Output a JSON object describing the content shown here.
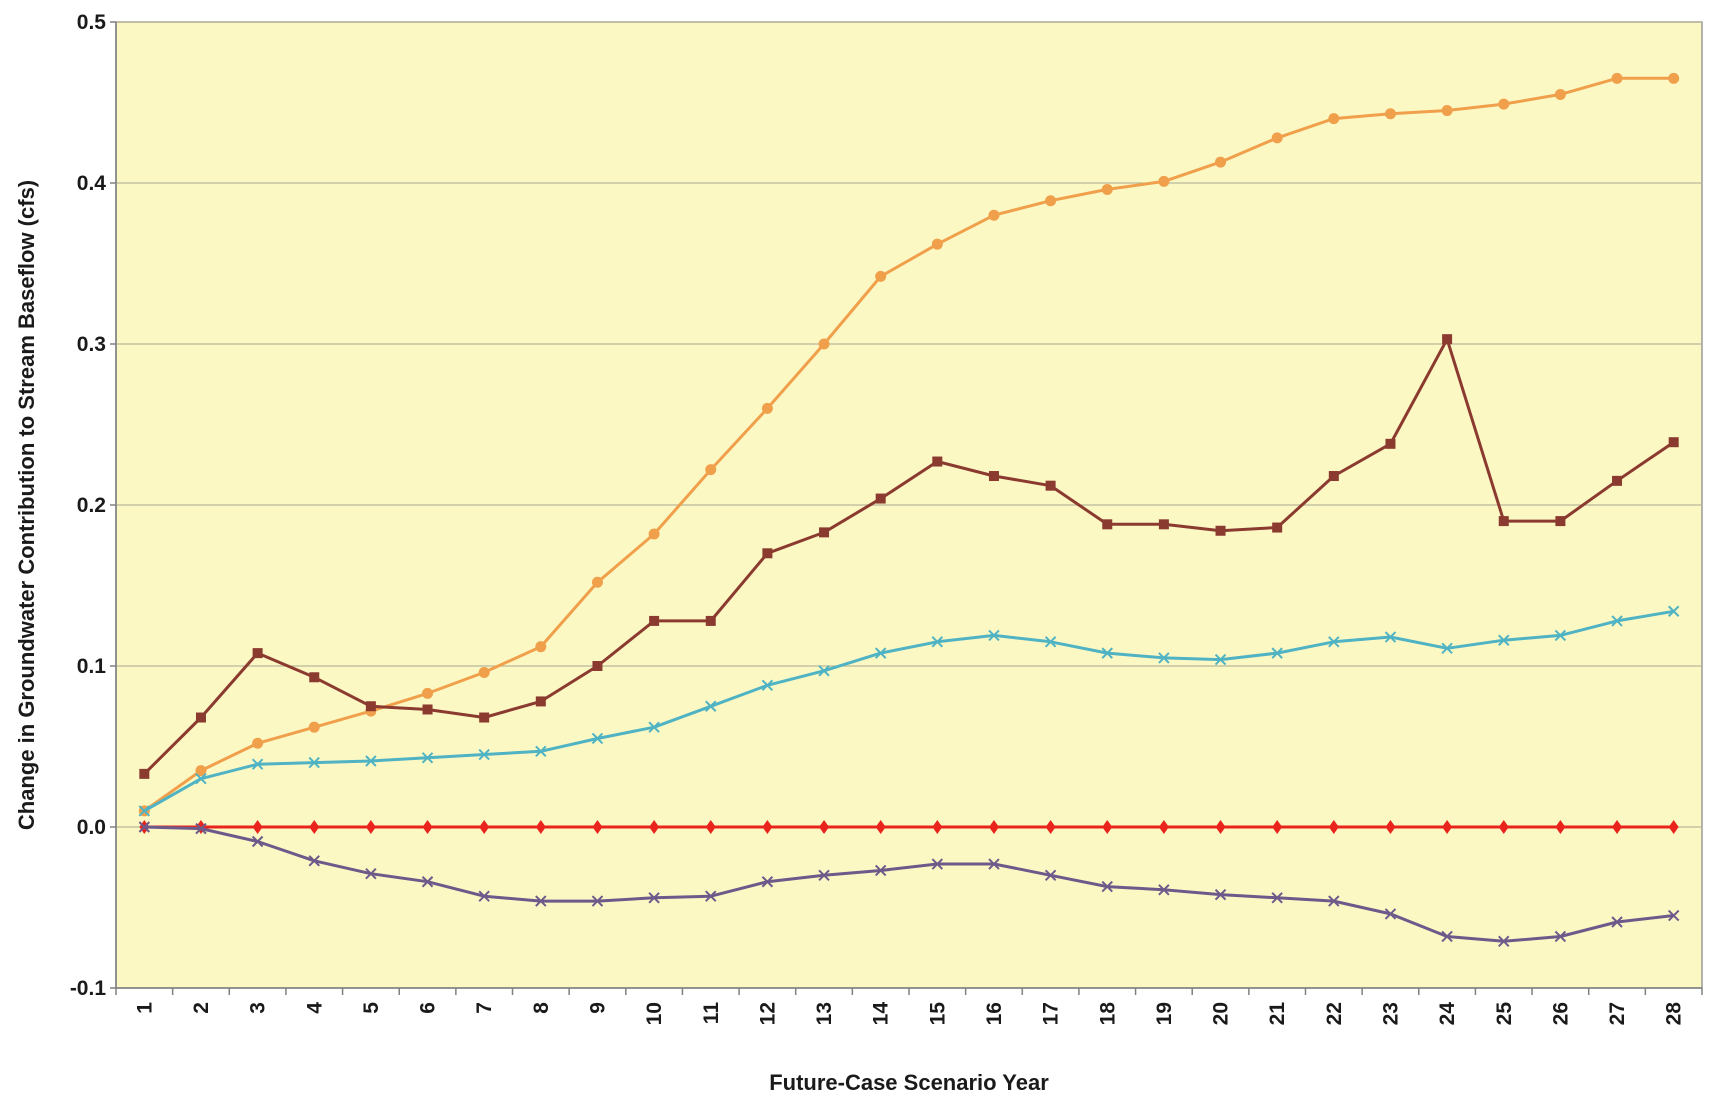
{
  "chart_data": {
    "type": "line",
    "title": "",
    "xlabel": "Future-Case Scenario Year",
    "ylabel": "Change in Groundwater Contribution to Stream Baseflow (cfs)",
    "x": [
      1,
      2,
      3,
      4,
      5,
      6,
      7,
      8,
      9,
      10,
      11,
      12,
      13,
      14,
      15,
      16,
      17,
      18,
      19,
      20,
      21,
      22,
      23,
      24,
      25,
      26,
      27,
      28
    ],
    "ylim": [
      -0.1,
      0.5
    ],
    "yticks": [
      -0.1,
      0.0,
      0.1,
      0.2,
      0.3,
      0.4,
      0.5
    ],
    "ytick_labels": [
      "-0.1",
      "0.0",
      "0.1",
      "0.2",
      "0.3",
      "0.4",
      "0.5"
    ],
    "grid": "horizontal",
    "plot_background": "#fcf8c4",
    "series": [
      {
        "color": "#f0a04b",
        "marker": "circle",
        "values": [
          0.01,
          0.035,
          0.052,
          0.062,
          0.072,
          0.083,
          0.096,
          0.112,
          0.152,
          0.182,
          0.222,
          0.26,
          0.3,
          0.342,
          0.362,
          0.38,
          0.389,
          0.396,
          0.401,
          0.413,
          0.428,
          0.44,
          0.443,
          0.445,
          0.449,
          0.455,
          0.465,
          0.465
        ]
      },
      {
        "color": "#8b3a2f",
        "marker": "square",
        "values": [
          0.033,
          0.068,
          0.108,
          0.093,
          0.075,
          0.073,
          0.068,
          0.078,
          0.1,
          0.128,
          0.128,
          0.17,
          0.183,
          0.204,
          0.227,
          0.218,
          0.212,
          0.188,
          0.188,
          0.184,
          0.186,
          0.218,
          0.238,
          0.303,
          0.19,
          0.19,
          0.215,
          0.239
        ]
      },
      {
        "color": "#4fb3c4",
        "marker": "x",
        "values": [
          0.01,
          0.03,
          0.039,
          0.04,
          0.041,
          0.043,
          0.045,
          0.047,
          0.055,
          0.062,
          0.075,
          0.088,
          0.097,
          0.108,
          0.115,
          0.119,
          0.115,
          0.108,
          0.105,
          0.104,
          0.108,
          0.115,
          0.118,
          0.111,
          0.116,
          0.119,
          0.128,
          0.134
        ]
      },
      {
        "color": "#e8241c",
        "marker": "diamond",
        "values": [
          0,
          0,
          0,
          0,
          0,
          0,
          0,
          0,
          0,
          0,
          0,
          0,
          0,
          0,
          0,
          0,
          0,
          0,
          0,
          0,
          0,
          0,
          0,
          0,
          0,
          0,
          0,
          0
        ]
      },
      {
        "color": "#6e5a8a",
        "marker": "x",
        "values": [
          0,
          -0.001,
          -0.009,
          -0.021,
          -0.029,
          -0.034,
          -0.043,
          -0.046,
          -0.046,
          -0.044,
          -0.043,
          -0.034,
          -0.03,
          -0.027,
          -0.023,
          -0.023,
          -0.03,
          -0.037,
          -0.039,
          -0.042,
          -0.044,
          -0.046,
          -0.054,
          -0.068,
          -0.071,
          -0.068,
          -0.059,
          -0.055
        ]
      }
    ]
  }
}
